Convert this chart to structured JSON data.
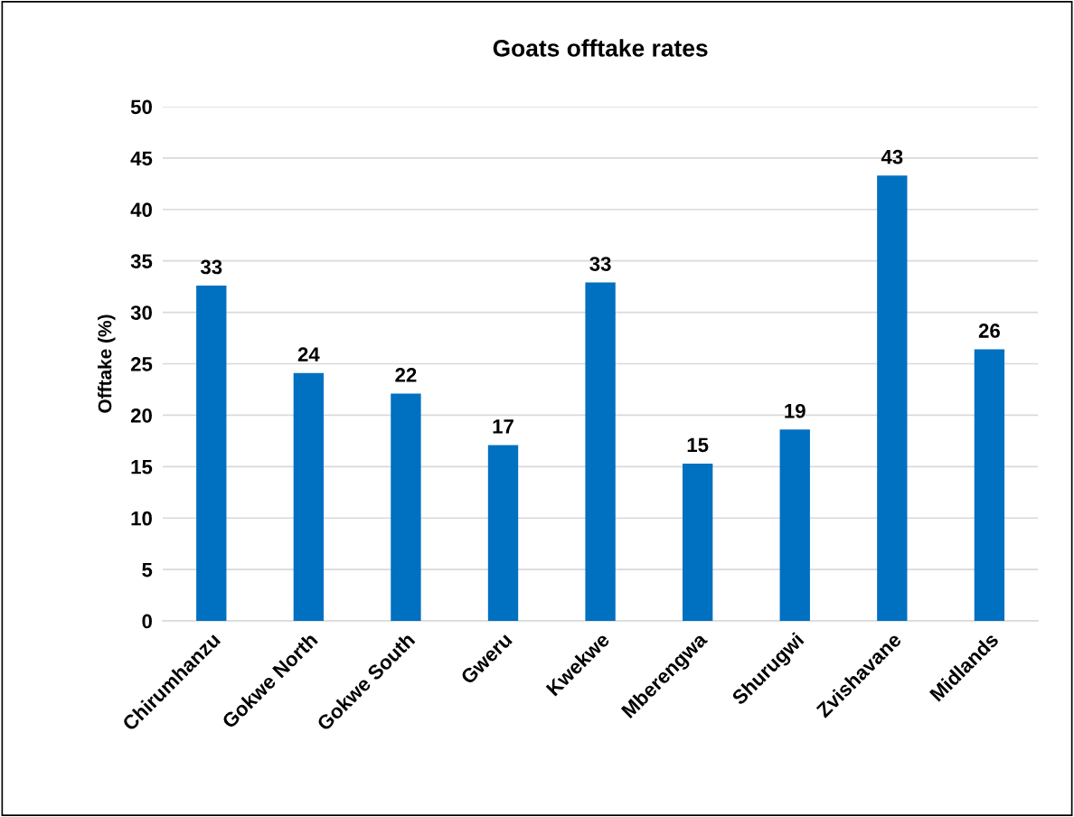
{
  "chart_data": {
    "type": "bar",
    "title": "Goats offtake rates",
    "ylabel": "Offtake (%)",
    "categories": [
      "Chirumhanzu",
      "Gokwe North",
      "Gokwe South",
      "Gweru",
      "Kwekwe",
      "Mberengwa",
      "Shurugwi",
      "Zvishavane",
      "Midlands"
    ],
    "values": [
      32.6,
      24.1,
      22.1,
      17.1,
      32.9,
      15.3,
      18.6,
      43.3,
      26.4
    ],
    "value_labels": [
      "33",
      "24",
      "22",
      "17",
      "33",
      "15",
      "19",
      "43",
      "26"
    ],
    "color": "#0070c0",
    "ylim": [
      0,
      50
    ],
    "yticks": [
      0,
      5,
      10,
      15,
      20,
      25,
      30,
      35,
      40,
      45,
      50
    ],
    "grid": "y",
    "legend": false
  }
}
